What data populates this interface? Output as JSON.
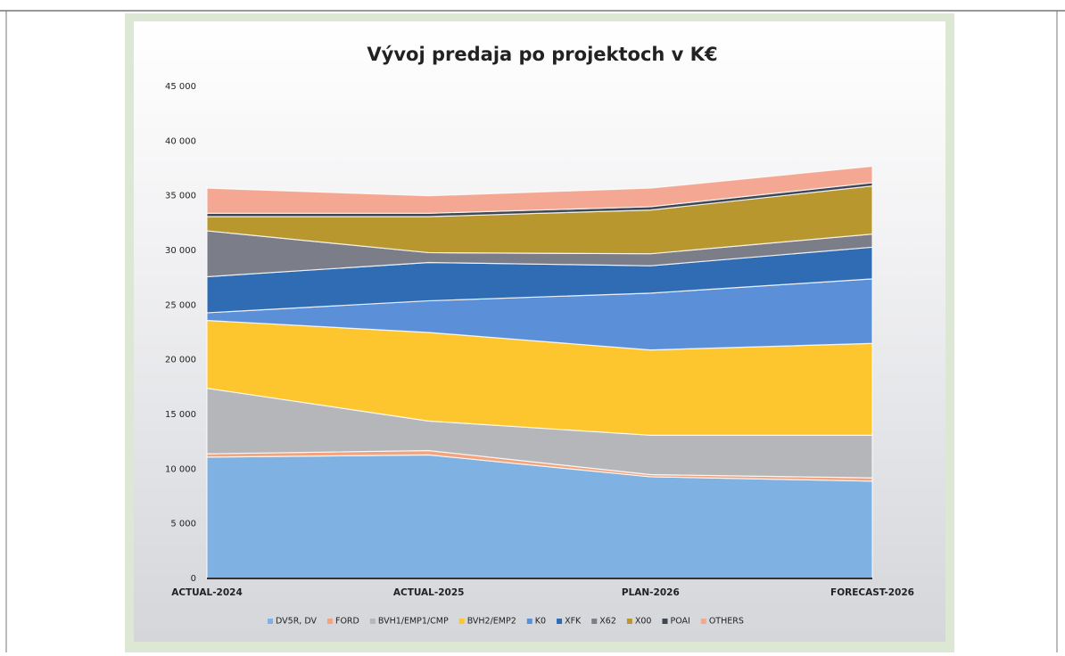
{
  "chart_data": {
    "type": "stacked_area",
    "title": "Vývoj predaja po projektoch v K€",
    "categories": [
      "ACTUAL-2024",
      "ACTUAL-2025",
      "PLAN-2026",
      "FORECAST-2026"
    ],
    "series": [
      {
        "name": "DV5R, DV",
        "color": "#7fb1e3",
        "values": [
          11100,
          11300,
          9300,
          8900
        ]
      },
      {
        "name": "FORD",
        "color": "#f2a47e",
        "values": [
          300,
          400,
          200,
          300
        ]
      },
      {
        "name": "BVH1/EMP1/CMP",
        "color": "#b4b6ba",
        "values": [
          6000,
          2700,
          3600,
          3900
        ]
      },
      {
        "name": "BVH2/EMP2",
        "color": "#fdc62e",
        "values": [
          6200,
          8100,
          7800,
          8400
        ]
      },
      {
        "name": "K0",
        "color": "#5b8fd8",
        "values": [
          700,
          2900,
          5200,
          5900
        ]
      },
      {
        "name": "XFK",
        "color": "#2f6cb3",
        "values": [
          3300,
          3500,
          2500,
          2900
        ]
      },
      {
        "name": "X62",
        "color": "#7b7d88",
        "values": [
          4200,
          900,
          1100,
          1200
        ]
      },
      {
        "name": "X00",
        "color": "#b8972e",
        "values": [
          1300,
          3300,
          4000,
          4400
        ]
      },
      {
        "name": "POAI",
        "color": "#3f4654",
        "values": [
          300,
          300,
          300,
          300
        ]
      },
      {
        "name": "OTHERS",
        "color": "#f4a893",
        "values": [
          2300,
          1600,
          1700,
          1500
        ]
      }
    ],
    "ylim": [
      0,
      45000
    ],
    "yticks": [
      0,
      {
        "value": 5000,
        "label": "5 000"
      },
      {
        "value": 10000,
        "label": "10 000"
      },
      {
        "value": 15000,
        "label": "15 000"
      },
      {
        "value": 20000,
        "label": "20 000"
      },
      {
        "value": 25000,
        "label": "25 000"
      },
      {
        "value": 30000,
        "label": "30 000"
      },
      {
        "value": 35000,
        "label": "35 000"
      },
      {
        "value": 40000,
        "label": "40 000"
      },
      {
        "value": 45000,
        "label": "45 000"
      }
    ]
  }
}
